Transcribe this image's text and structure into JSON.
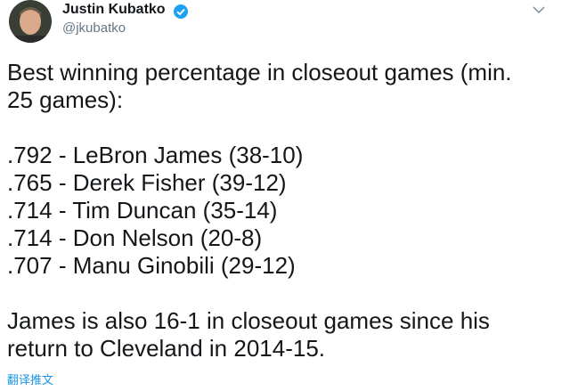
{
  "author": {
    "name": "Justin Kubatko",
    "handle": "@jkubatko"
  },
  "tweet": {
    "paragraphs": [
      {
        "lines": [
          "Best winning percentage in closeout games (min.",
          "25 games):"
        ]
      },
      {
        "lines": [
          ".792 - LeBron James (38-10)",
          ".765 - Derek Fisher (39-12)",
          ".714 - Tim Duncan (35-14)",
          ".714 - Don Nelson (20-8)",
          ".707 - Manu Ginobili (29-12)"
        ]
      },
      {
        "lines": [
          "James is also 16-1 in closeout games since his",
          "return to Cleveland in 2014-15."
        ]
      }
    ]
  },
  "translate_link": "翻译推文"
}
